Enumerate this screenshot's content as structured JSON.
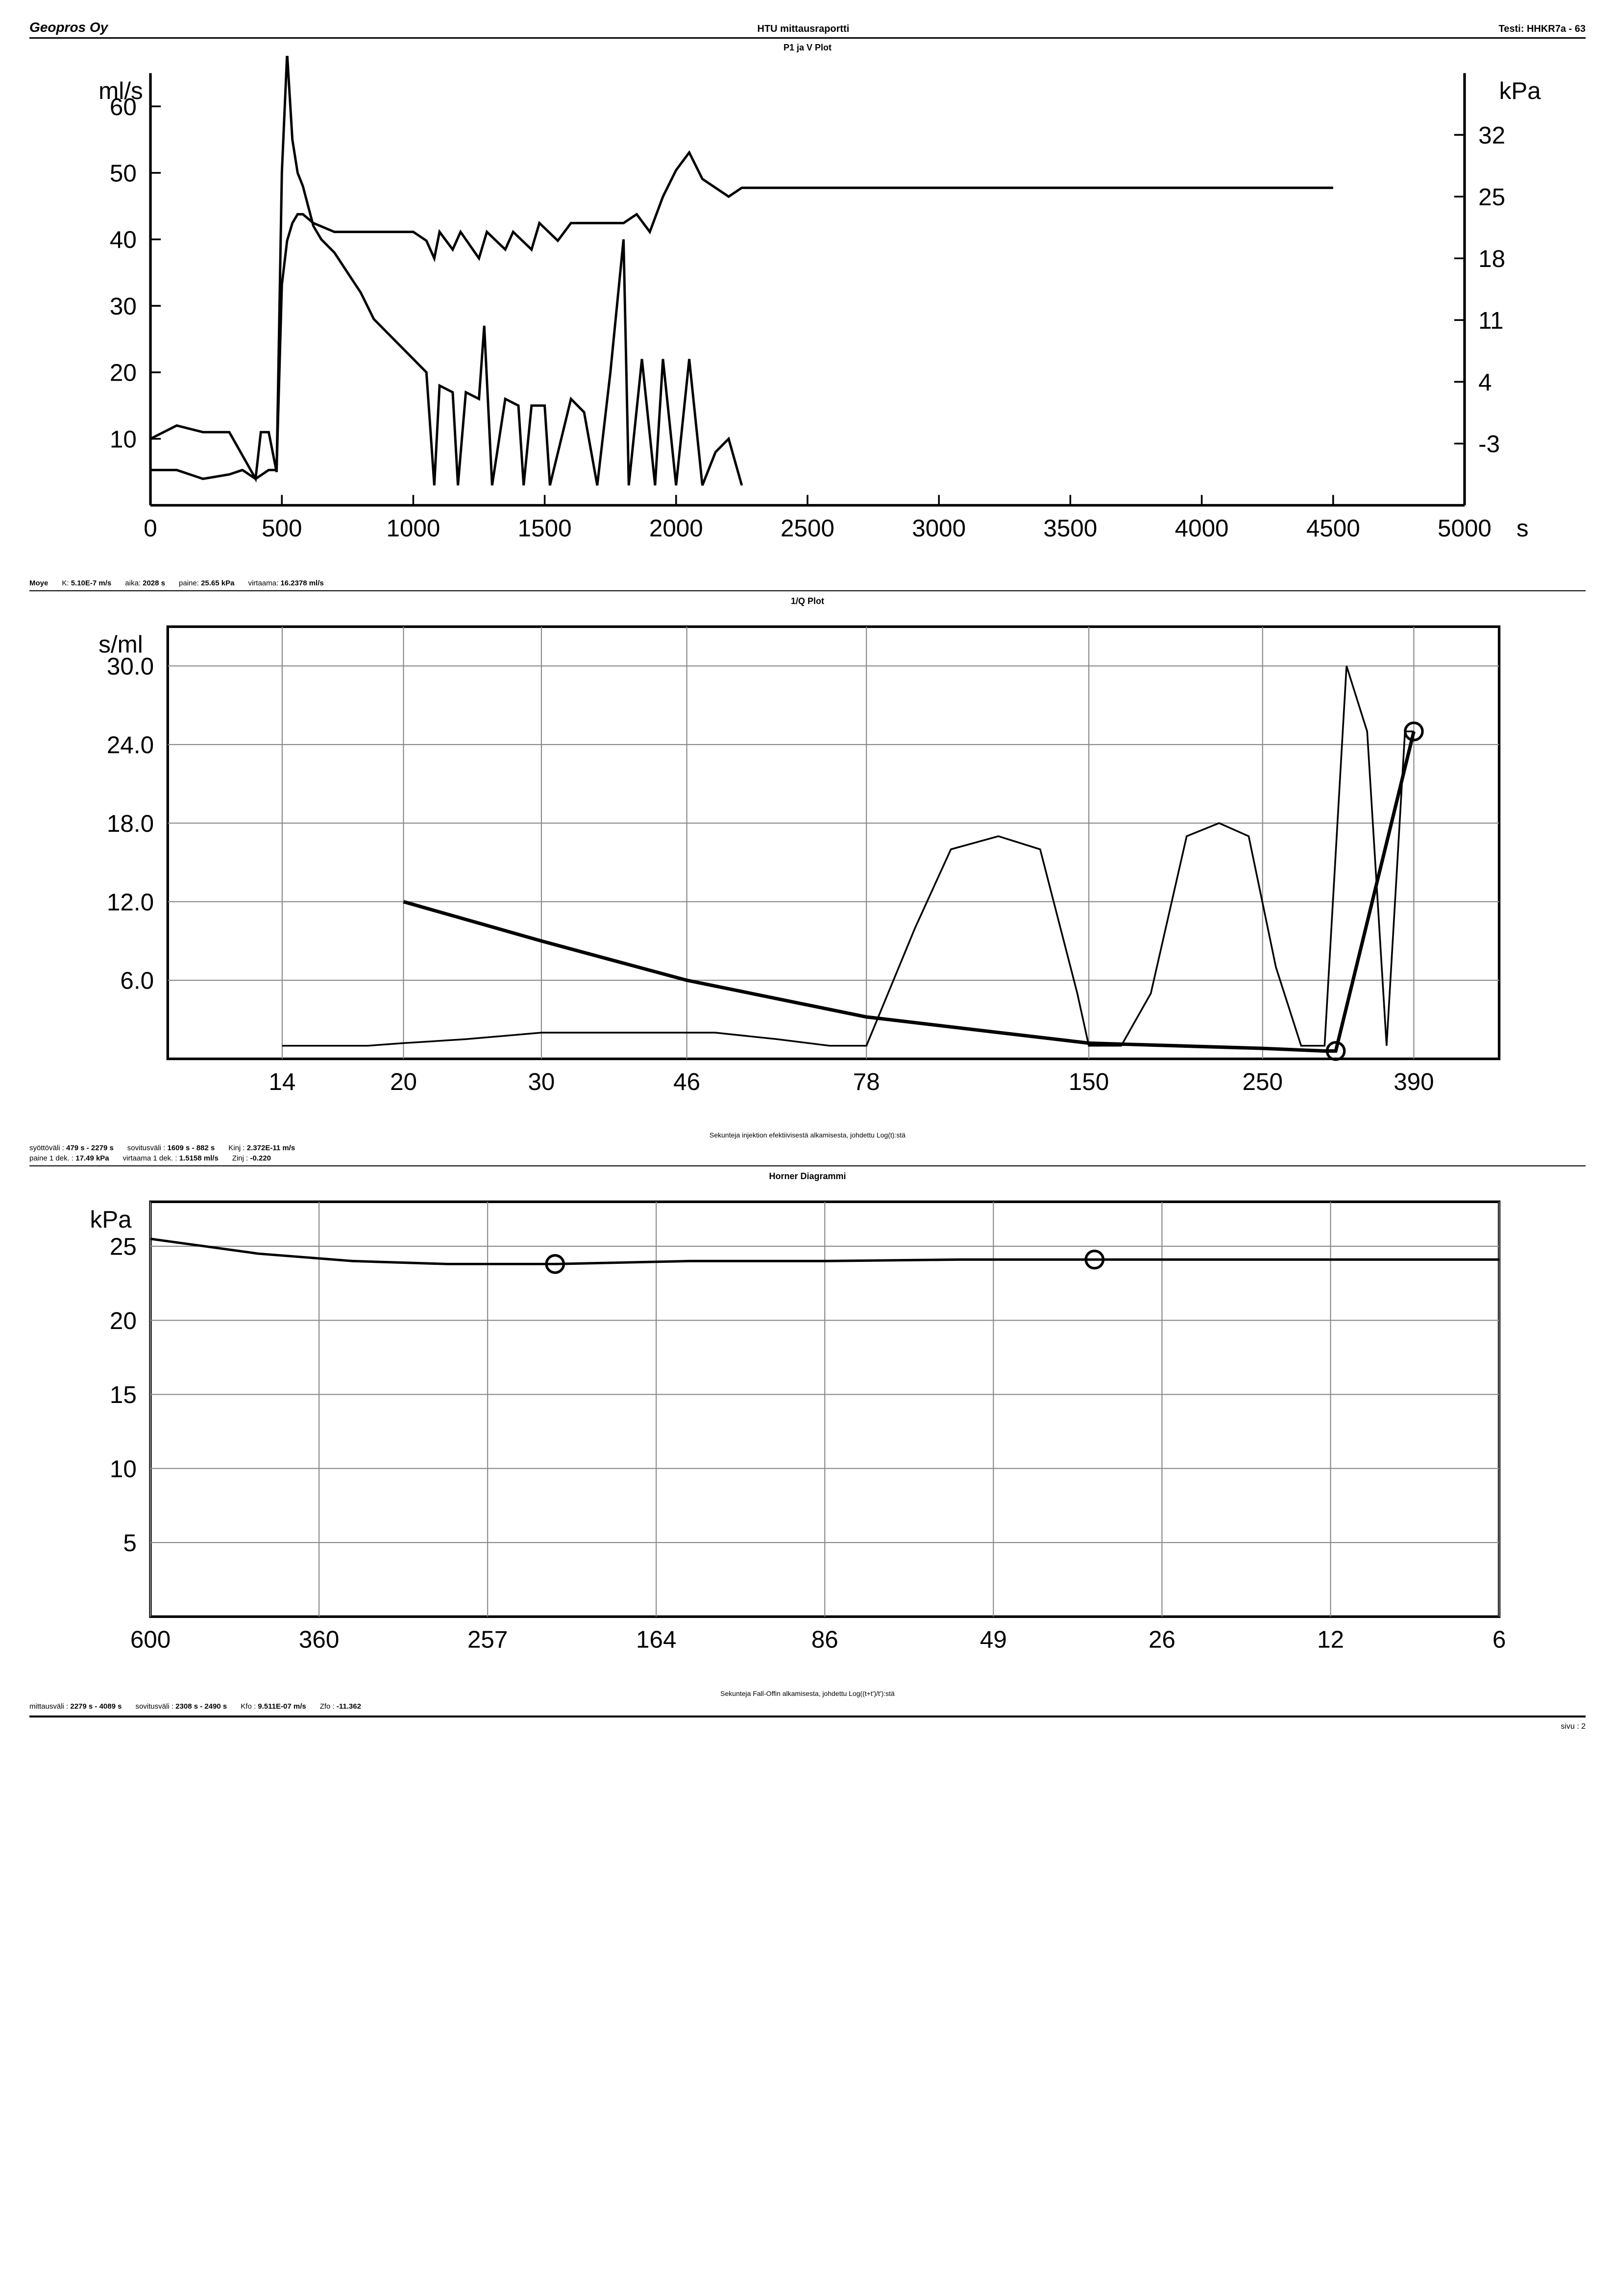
{
  "header": {
    "company": "Geopros Oy",
    "report_title": "HTU mittausraportti",
    "test_label": "Testi:",
    "test_id": "HHKR7a - 63"
  },
  "chart1": {
    "title": "P1 ja V Plot",
    "type": "line-dual-axis",
    "y_left": {
      "label": "ml/s",
      "ticks": [
        10,
        20,
        30,
        40,
        50,
        60
      ],
      "min": 0,
      "max": 65
    },
    "y_right": {
      "label": "kPa",
      "ticks": [
        -3,
        4,
        11,
        18,
        25,
        32
      ],
      "min": -10,
      "max": 39
    },
    "x": {
      "ticks": [
        0,
        500,
        1000,
        1500,
        2000,
        2500,
        3000,
        3500,
        4000,
        4500,
        5000
      ],
      "unit": "s",
      "min": 0,
      "max": 5000
    },
    "series_pressure": [
      [
        0,
        -6
      ],
      [
        100,
        -6
      ],
      [
        200,
        -7
      ],
      [
        300,
        -6.5
      ],
      [
        350,
        -6
      ],
      [
        400,
        -7
      ],
      [
        450,
        -6
      ],
      [
        480,
        -6
      ],
      [
        500,
        15
      ],
      [
        520,
        20
      ],
      [
        540,
        22
      ],
      [
        560,
        23
      ],
      [
        580,
        23
      ],
      [
        620,
        22
      ],
      [
        700,
        21
      ],
      [
        800,
        21
      ],
      [
        900,
        21
      ],
      [
        1000,
        21
      ],
      [
        1050,
        20
      ],
      [
        1080,
        18
      ],
      [
        1100,
        21
      ],
      [
        1150,
        19
      ],
      [
        1180,
        21
      ],
      [
        1250,
        18
      ],
      [
        1280,
        21
      ],
      [
        1350,
        19
      ],
      [
        1380,
        21
      ],
      [
        1450,
        19
      ],
      [
        1480,
        22
      ],
      [
        1550,
        20
      ],
      [
        1600,
        22
      ],
      [
        1700,
        22
      ],
      [
        1800,
        22
      ],
      [
        1850,
        23
      ],
      [
        1900,
        21
      ],
      [
        1950,
        25
      ],
      [
        2000,
        28
      ],
      [
        2050,
        30
      ],
      [
        2100,
        27
      ],
      [
        2150,
        26
      ],
      [
        2200,
        25
      ],
      [
        2250,
        26
      ],
      [
        2300,
        26
      ],
      [
        2500,
        26
      ],
      [
        3000,
        26
      ],
      [
        3500,
        26
      ],
      [
        4000,
        26
      ],
      [
        4200,
        26
      ],
      [
        4250,
        26
      ],
      [
        4500,
        26
      ]
    ],
    "series_flow": [
      [
        0,
        10
      ],
      [
        100,
        12
      ],
      [
        200,
        11
      ],
      [
        300,
        11
      ],
      [
        400,
        4
      ],
      [
        420,
        11
      ],
      [
        450,
        11
      ],
      [
        480,
        5
      ],
      [
        500,
        50
      ],
      [
        520,
        68
      ],
      [
        540,
        55
      ],
      [
        560,
        50
      ],
      [
        580,
        48
      ],
      [
        620,
        42
      ],
      [
        650,
        40
      ],
      [
        700,
        38
      ],
      [
        750,
        35
      ],
      [
        800,
        32
      ],
      [
        850,
        28
      ],
      [
        900,
        26
      ],
      [
        950,
        24
      ],
      [
        1000,
        22
      ],
      [
        1050,
        20
      ],
      [
        1080,
        3
      ],
      [
        1100,
        18
      ],
      [
        1150,
        17
      ],
      [
        1170,
        3
      ],
      [
        1200,
        17
      ],
      [
        1250,
        16
      ],
      [
        1270,
        27
      ],
      [
        1300,
        3
      ],
      [
        1350,
        16
      ],
      [
        1400,
        15
      ],
      [
        1420,
        3
      ],
      [
        1450,
        15
      ],
      [
        1500,
        15
      ],
      [
        1520,
        3
      ],
      [
        1600,
        16
      ],
      [
        1650,
        14
      ],
      [
        1700,
        3
      ],
      [
        1750,
        20
      ],
      [
        1800,
        40
      ],
      [
        1820,
        3
      ],
      [
        1870,
        22
      ],
      [
        1920,
        3
      ],
      [
        1950,
        22
      ],
      [
        2000,
        3
      ],
      [
        2050,
        22
      ],
      [
        2100,
        3
      ],
      [
        2150,
        8
      ],
      [
        2200,
        10
      ],
      [
        2250,
        3
      ]
    ],
    "line_color": "#000000",
    "line_width": 1.4,
    "background": "#ffffff",
    "info": {
      "moye_label": "Moye",
      "k_label": "K:",
      "k_value": "5.10E-7 m/s",
      "aika_label": "aika:",
      "aika_value": "2028 s",
      "paine_label": "paine:",
      "paine_value": "25.65 kPa",
      "virtaama_label": "virtaama:",
      "virtaama_value": "16.2378 ml/s"
    }
  },
  "chart2": {
    "title": "1/Q Plot",
    "type": "line-log-x",
    "y": {
      "label": "s/ml",
      "ticks": [
        6.0,
        12.0,
        18.0,
        24.0,
        30.0
      ],
      "min": 0,
      "max": 33
    },
    "x": {
      "ticks": [
        14,
        20,
        30,
        46,
        78,
        150,
        250,
        390
      ],
      "label": "Sekunteja injektion efektiivisestä alkamisesta, johdettu Log(t):stä",
      "min_log": 1.0,
      "max_log": 2.7
    },
    "series_curve": [
      [
        14,
        1
      ],
      [
        18,
        1
      ],
      [
        20,
        1.2
      ],
      [
        24,
        1.5
      ],
      [
        30,
        2
      ],
      [
        40,
        2
      ],
      [
        50,
        2
      ],
      [
        60,
        1.5
      ],
      [
        70,
        1
      ],
      [
        78,
        1
      ],
      [
        90,
        10
      ],
      [
        100,
        16
      ],
      [
        115,
        17
      ],
      [
        130,
        16
      ],
      [
        145,
        5
      ],
      [
        150,
        1
      ],
      [
        165,
        1
      ],
      [
        180,
        5
      ],
      [
        200,
        17
      ],
      [
        220,
        18
      ],
      [
        240,
        17
      ],
      [
        260,
        7
      ],
      [
        280,
        1
      ],
      [
        300,
        1
      ],
      [
        320,
        30
      ],
      [
        340,
        25
      ],
      [
        360,
        1
      ],
      [
        380,
        25
      ],
      [
        390,
        25
      ]
    ],
    "series_line": [
      [
        20,
        12
      ],
      [
        30,
        9
      ],
      [
        46,
        6
      ],
      [
        78,
        3.2
      ],
      [
        150,
        1.2
      ],
      [
        250,
        0.8
      ],
      [
        300,
        0.6
      ],
      [
        310,
        0.6
      ],
      [
        390,
        25
      ]
    ],
    "markers": [
      {
        "x": 310,
        "y": 0.6
      },
      {
        "x": 390,
        "y": 25
      }
    ],
    "grid_color": "#888888",
    "line_color": "#000000",
    "background": "#ffffff",
    "info": {
      "syottovali_label": "syöttöväli :",
      "syottovali_value": "479 s -  2279 s",
      "paine1dek_label": "paine 1 dek. :",
      "paine1dek_value": "17.49 kPa",
      "sovitusvali_label": "sovitusväli :",
      "sovitusvali_value": "1609 s -   882 s",
      "virtaama1dek_label": "virtaama 1 dek. :",
      "virtaama1dek_value": "1.5158 ml/s",
      "kinj_label": "Kinj :",
      "kinj_value": "2.372E-11 m/s",
      "zinj_label": "Zinj :",
      "zinj_value": "-0.220"
    }
  },
  "chart3": {
    "title": "Horner Diagrammi",
    "type": "line-log-x-reversed",
    "y": {
      "label": "kPa",
      "ticks": [
        5,
        10,
        15,
        20,
        25
      ],
      "min": 0,
      "max": 28
    },
    "x": {
      "ticks": [
        600,
        360,
        257,
        164,
        86,
        49,
        26,
        12,
        6
      ],
      "label": "Sekunteja Fall-Offin alkamisesta, johdettu Log((t+t')/t'):stä"
    },
    "series": [
      [
        0,
        25.5
      ],
      [
        0.08,
        24.5
      ],
      [
        0.15,
        24
      ],
      [
        0.22,
        23.8
      ],
      [
        0.3,
        23.8
      ],
      [
        0.4,
        24
      ],
      [
        0.5,
        24
      ],
      [
        0.6,
        24.1
      ],
      [
        0.7,
        24.1
      ],
      [
        0.8,
        24.1
      ],
      [
        0.9,
        24.1
      ],
      [
        1.0,
        24.1
      ]
    ],
    "markers": [
      {
        "frac": 0.3,
        "y": 23.8
      },
      {
        "frac": 0.7,
        "y": 24.1
      }
    ],
    "grid_color": "#888888",
    "line_color": "#000000",
    "background": "#ffffff",
    "info": {
      "mittausvali_label": "mittausväli :",
      "mittausvali_value": "2279 s - 4089 s",
      "sovitusvali_label": "sovitusväli :",
      "sovitusvali_value": "2308 s - 2490 s",
      "kfo_label": "Kfo :",
      "kfo_value": "9.511E-07 m/s",
      "zfo_label": "Zfo :",
      "zfo_value": "-11.362"
    }
  },
  "footer": {
    "page_label": "sivu :",
    "page_number": "2"
  },
  "style": {
    "font_family": "Arial",
    "title_fontsize": 18,
    "axis_fontsize": 14,
    "info_fontsize": 15
  }
}
